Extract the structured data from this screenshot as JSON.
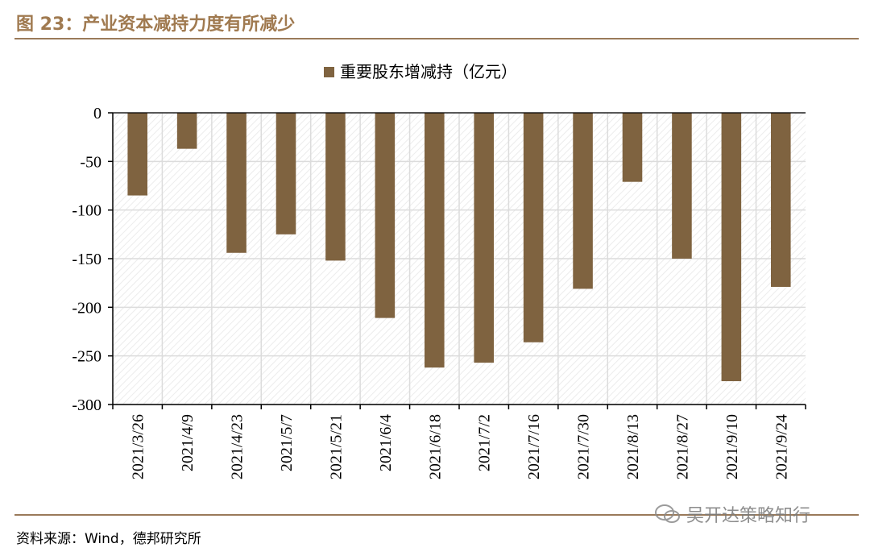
{
  "figure_title": "图 23：产业资本减持力度有所减少",
  "source": "资料来源：Wind，德邦研究所",
  "watermark": "吴开达策略知行",
  "colors": {
    "bar": "#7f6340",
    "axis": "#000000",
    "grid": "#dcdcdc",
    "title": "#a07a50",
    "rule": "#9a7a5a"
  },
  "chart_data": {
    "type": "bar",
    "legend_position": "top-center",
    "grid": true,
    "categories": [
      "2021/3/26",
      "2021/4/9",
      "2021/4/23",
      "2021/5/7",
      "2021/5/21",
      "2021/6/4",
      "2021/6/18",
      "2021/7/2",
      "2021/7/16",
      "2021/7/30",
      "2021/8/13",
      "2021/8/27",
      "2021/9/10",
      "2021/9/24"
    ],
    "series": [
      {
        "name": "重要股东增减持（亿元）",
        "values": [
          -85,
          -37,
          -144,
          -125,
          -152,
          -211,
          -262,
          -257,
          -236,
          -181,
          -71,
          -150,
          -276,
          -179
        ]
      }
    ],
    "ylim": [
      -300,
      0
    ],
    "yticks": [
      0,
      -50,
      -100,
      -150,
      -200,
      -250,
      -300
    ],
    "ytick_labels": [
      "0",
      "-50",
      "-100",
      "-150",
      "-200",
      "-250",
      "-300"
    ]
  }
}
